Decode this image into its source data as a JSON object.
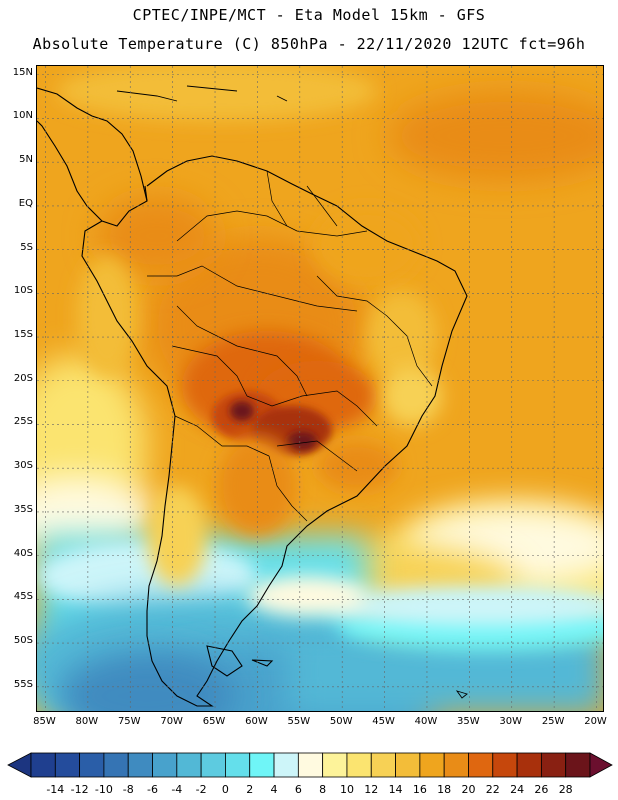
{
  "header": {
    "title_line1": "CPTEC/INPE/MCT  -  Eta Model 15km - GFS",
    "title_line2": "Absolute Temperature (C) 850hPa - 22/11/2020 12UTC fct=96h"
  },
  "map": {
    "lat_ticks": [
      {
        "value": 15,
        "label": "15N"
      },
      {
        "value": 10,
        "label": "10N"
      },
      {
        "value": 5,
        "label": "5N"
      },
      {
        "value": 0,
        "label": "EQ"
      },
      {
        "value": -5,
        "label": "5S"
      },
      {
        "value": -10,
        "label": "10S"
      },
      {
        "value": -15,
        "label": "15S"
      },
      {
        "value": -20,
        "label": "20S"
      },
      {
        "value": -25,
        "label": "25S"
      },
      {
        "value": -30,
        "label": "30S"
      },
      {
        "value": -35,
        "label": "35S"
      },
      {
        "value": -40,
        "label": "40S"
      },
      {
        "value": -45,
        "label": "45S"
      },
      {
        "value": -50,
        "label": "50S"
      },
      {
        "value": -55,
        "label": "55S"
      }
    ],
    "lon_ticks": [
      {
        "value": -85,
        "label": "85W"
      },
      {
        "value": -80,
        "label": "80W"
      },
      {
        "value": -75,
        "label": "75W"
      },
      {
        "value": -70,
        "label": "70W"
      },
      {
        "value": -65,
        "label": "65W"
      },
      {
        "value": -60,
        "label": "60W"
      },
      {
        "value": -55,
        "label": "55W"
      },
      {
        "value": -50,
        "label": "50W"
      },
      {
        "value": -45,
        "label": "45W"
      },
      {
        "value": -40,
        "label": "40W"
      },
      {
        "value": -35,
        "label": "35W"
      },
      {
        "value": -30,
        "label": "30W"
      },
      {
        "value": -25,
        "label": "25W"
      },
      {
        "value": -20,
        "label": "20W"
      }
    ],
    "lon_range": [
      -86,
      -19
    ],
    "lat_range": [
      -58,
      16
    ]
  },
  "colorbar": {
    "labels": [
      "-14",
      "-12",
      "-10",
      "-8",
      "-6",
      "-4",
      "-2",
      "0",
      "2",
      "4",
      "6",
      "8",
      "10",
      "12",
      "14",
      "16",
      "18",
      "20",
      "22",
      "24",
      "26",
      "28"
    ],
    "colors": [
      "#1f3f8f",
      "#244c9c",
      "#2a5ea8",
      "#3574b4",
      "#3f8bc0",
      "#48a2cc",
      "#52b8d6",
      "#5dcbe0",
      "#64dfeb",
      "#6ff5f7",
      "#cdf5f9",
      "#fffae0",
      "#fdf39a",
      "#fbe470",
      "#f7d155",
      "#f3bd39",
      "#efa51e",
      "#e98c17",
      "#df6710",
      "#c6470c",
      "#a8300c",
      "#892012",
      "#6b141a"
    ],
    "under_color": "#1c3580",
    "over_color": "#6b0f2e"
  }
}
